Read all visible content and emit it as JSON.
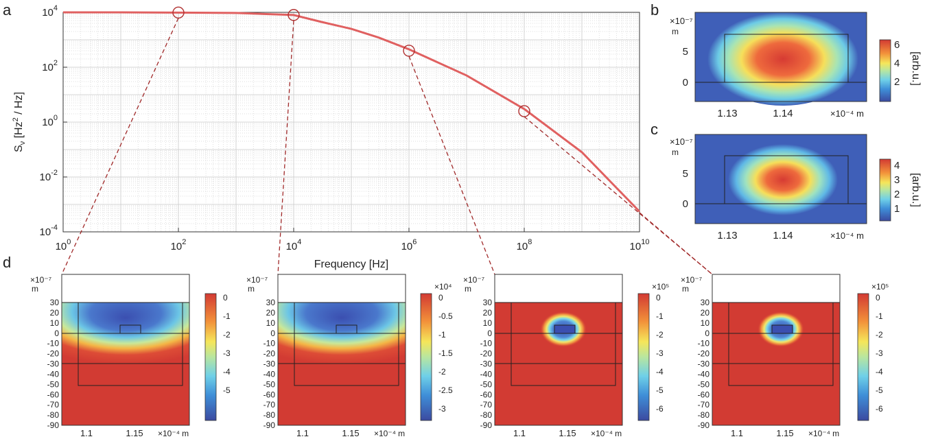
{
  "chart_data": [
    {
      "panel": "a",
      "type": "line",
      "xlabel": "Frequency [Hz]",
      "ylabel": "S_ν [Hz^2 / Hz]",
      "xscale": "log",
      "yscale": "log",
      "xlim": [
        1,
        10000000000
      ],
      "ylim": [
        0.0001,
        10000
      ],
      "grid": true,
      "x_tick_exponents": [
        "0",
        "2",
        "4",
        "6",
        "8",
        "10"
      ],
      "y_tick_exponents": [
        "-4",
        "-2",
        "0",
        "2",
        "4"
      ],
      "tick_base": "10",
      "color": "#e06060",
      "x": [
        1,
        10,
        100,
        1000,
        10000,
        30000,
        100000,
        300000,
        1000000,
        10000000,
        100000000,
        1000000000,
        10000000000
      ],
      "y": [
        10000,
        10000,
        9800,
        9500,
        8000,
        4500,
        2500,
        1200,
        450,
        50,
        3,
        0.08,
        0.00055
      ],
      "markers": [
        {
          "x": 100,
          "y": 9800
        },
        {
          "x": 10000,
          "y": 8000
        },
        {
          "x": 1000000,
          "y": 400
        },
        {
          "x": 100000000,
          "y": 2.5
        }
      ]
    },
    {
      "panel": "b",
      "type": "heatmap",
      "x_ticks": [
        "1.13",
        "1.14"
      ],
      "x_unit": "×10⁻⁴ m",
      "y_ticks": [
        "5",
        "0"
      ],
      "y_unit": "×10⁻⁷",
      "y_unit_m": "m",
      "colorbar_ticks": [
        "6",
        "4",
        "2"
      ],
      "colorbar_label": "[arb.u.]"
    },
    {
      "panel": "c",
      "type": "heatmap",
      "x_ticks": [
        "1.13",
        "1.14"
      ],
      "x_unit": "×10⁻⁴ m",
      "y_ticks": [
        "5",
        "0"
      ],
      "y_unit": "×10⁻⁷",
      "y_unit_m": "m",
      "colorbar_ticks": [
        "4",
        "3",
        "2",
        "1"
      ],
      "colorbar_label": "[arb.u.]"
    },
    {
      "panel": "d",
      "type": "heatmap",
      "y_ticks": [
        "30",
        "20",
        "10",
        "0",
        "-10",
        "-20",
        "-30",
        "-40",
        "-50",
        "-60",
        "-70",
        "-80",
        "-90"
      ],
      "y_unit": "×10⁻⁷",
      "y_unit_m": "m",
      "x_ticks": [
        "1.1",
        "1.15"
      ],
      "x_unit": "×10⁻⁴ m",
      "subplots": [
        {
          "colorbar_multiplier": "",
          "colorbar_ticks": [
            "0",
            "-1",
            "-2",
            "-3",
            "-4",
            "-5"
          ]
        },
        {
          "colorbar_multiplier": "×10⁴",
          "colorbar_ticks": [
            "0",
            "-0.5",
            "-1",
            "-1.5",
            "-2",
            "-2.5",
            "-3"
          ]
        },
        {
          "colorbar_multiplier": "×10⁵",
          "colorbar_ticks": [
            "0",
            "-1",
            "-2",
            "-3",
            "-4",
            "-5",
            "-6"
          ]
        },
        {
          "colorbar_multiplier": "×10⁵",
          "colorbar_ticks": [
            "0",
            "-1",
            "-2",
            "-3",
            "-4",
            "-5",
            "-6"
          ]
        }
      ]
    }
  ],
  "panel_labels": [
    "a",
    "b",
    "c",
    "d"
  ]
}
